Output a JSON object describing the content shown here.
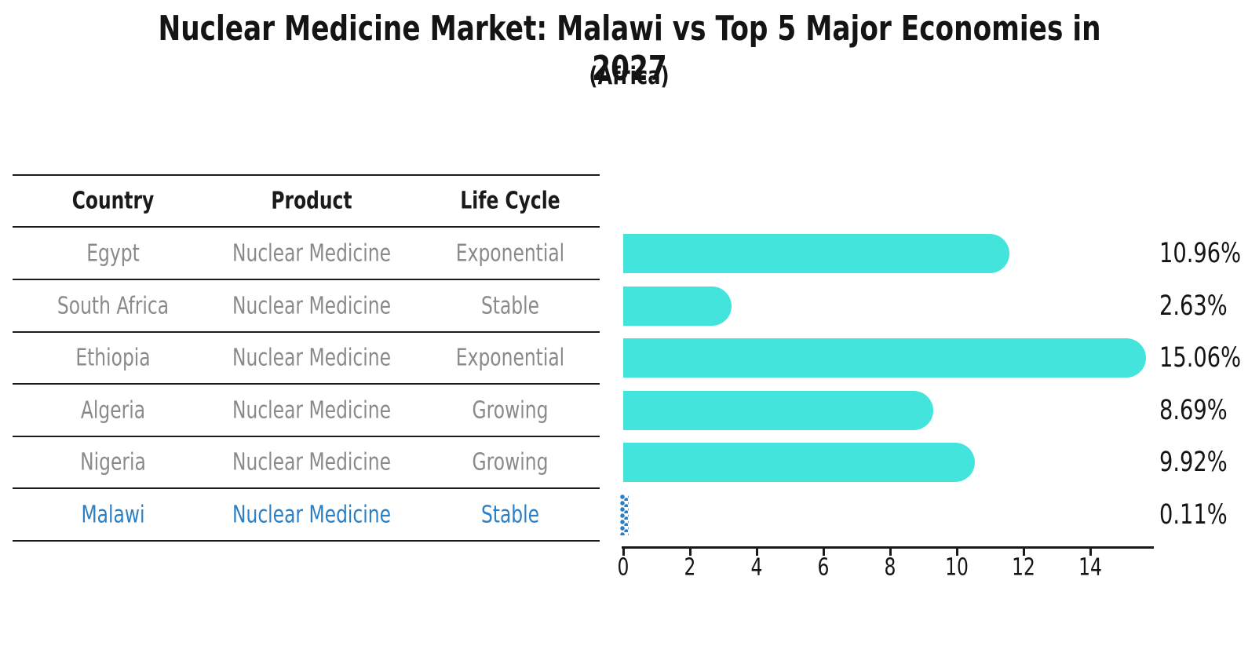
{
  "title": "Nuclear Medicine Market: Malawi vs Top 5 Major Economies in 2027",
  "subtitle": "(Africa)",
  "table": {
    "headers": [
      "Country",
      "Product",
      "Life Cycle"
    ],
    "rows": [
      {
        "country": "Egypt",
        "product": "Nuclear Medicine",
        "life_cycle": "Exponential",
        "value": 10.96,
        "value_label": "10.96%",
        "highlight": false
      },
      {
        "country": "South Africa",
        "product": "Nuclear Medicine",
        "life_cycle": "Stable",
        "value": 2.63,
        "value_label": "2.63%",
        "highlight": false
      },
      {
        "country": "Ethiopia",
        "product": "Nuclear Medicine",
        "life_cycle": "Exponential",
        "value": 15.06,
        "value_label": "15.06%",
        "highlight": false
      },
      {
        "country": "Algeria",
        "product": "Nuclear Medicine",
        "life_cycle": "Growing",
        "value": 8.69,
        "value_label": "8.69%",
        "highlight": false
      },
      {
        "country": "Nigeria",
        "product": "Nuclear Medicine",
        "life_cycle": "Growing",
        "value": 9.92,
        "value_label": "9.92%",
        "highlight": false
      },
      {
        "country": "Malawi",
        "product": "Nuclear Medicine",
        "life_cycle": "Stable",
        "value": 0.11,
        "value_label": "0.11%",
        "highlight": true
      }
    ]
  },
  "chart_data": {
    "type": "bar",
    "orientation": "horizontal",
    "title": "Nuclear Medicine Market: Malawi vs Top 5 Major Economies in 2027",
    "subtitle": "(Africa)",
    "categories": [
      "Egypt",
      "South Africa",
      "Ethiopia",
      "Algeria",
      "Nigeria",
      "Malawi"
    ],
    "values": [
      10.96,
      2.63,
      15.06,
      8.69,
      9.92,
      0.11
    ],
    "value_labels": [
      "10.96%",
      "2.63%",
      "15.06%",
      "8.69%",
      "9.92%",
      "0.11%"
    ],
    "x_ticks": [
      0,
      2,
      4,
      6,
      8,
      10,
      12,
      14
    ],
    "xlim": [
      0,
      15.9
    ],
    "grid": false,
    "legend": false,
    "bar_color": "#42E4DC",
    "highlight_index": 5,
    "highlight_color": "#2B7FC4",
    "text_gray": "#8A8A8A"
  }
}
